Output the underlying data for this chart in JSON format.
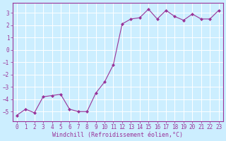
{
  "x": [
    0,
    1,
    2,
    3,
    4,
    5,
    6,
    7,
    8,
    9,
    10,
    11,
    12,
    13,
    14,
    15,
    16,
    17,
    18,
    19,
    20,
    21,
    22,
    23
  ],
  "y": [
    -5.3,
    -4.8,
    -5.1,
    -3.8,
    -3.7,
    -3.6,
    -4.8,
    -5.0,
    -5.0,
    -3.5,
    -2.6,
    -1.2,
    2.1,
    2.5,
    2.6,
    3.3,
    2.5,
    3.2,
    2.7,
    2.4,
    2.9,
    2.5,
    2.5,
    3.2
  ],
  "line_color": "#993399",
  "marker": "D",
  "marker_size": 2,
  "background_color": "#cceeff",
  "grid_color": "#ffffff",
  "xlabel": "Windchill (Refroidissement éolien,°C)",
  "xlim": [
    -0.5,
    23.5
  ],
  "ylim": [
    -5.8,
    3.8
  ],
  "yticks": [
    -5,
    -4,
    -3,
    -2,
    -1,
    0,
    1,
    2,
    3
  ],
  "xticks": [
    0,
    1,
    2,
    3,
    4,
    5,
    6,
    7,
    8,
    9,
    10,
    11,
    12,
    13,
    14,
    15,
    16,
    17,
    18,
    19,
    20,
    21,
    22,
    23
  ],
  "tick_color": "#993399",
  "spine_color": "#993399",
  "font_size": 5.5,
  "xlabel_size": 6.0
}
